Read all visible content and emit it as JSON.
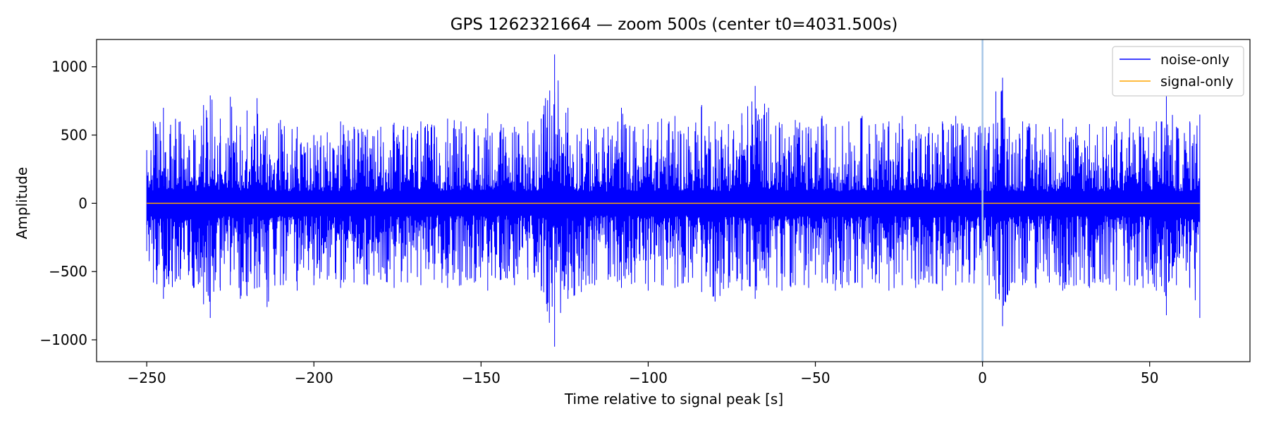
{
  "chart_data": {
    "type": "line",
    "title": "GPS 1262321664 — zoom 500s (center t0=4031.500s)",
    "xlabel": "Time relative to signal peak [s]",
    "ylabel": "Amplitude",
    "xlim": [
      -265,
      80
    ],
    "ylim": [
      -1160,
      1200
    ],
    "x_ticks": [
      -250,
      -200,
      -150,
      -100,
      -50,
      0,
      50
    ],
    "x_tick_labels": [
      "−250",
      "−200",
      "−150",
      "−100",
      "−50",
      "0",
      "50"
    ],
    "y_ticks": [
      -1000,
      -500,
      0,
      500,
      1000
    ],
    "y_tick_labels": [
      "−1000",
      "−500",
      "0",
      "500",
      "1000"
    ],
    "grid": false,
    "legend_position": "top-right",
    "vertical_marker_x": 0,
    "vertical_marker_color": "#a7c7e7",
    "series": [
      {
        "name": "noise-only",
        "color": "#0000ff",
        "x_range": [
          -250,
          65
        ],
        "envelope_max": [
          [
            -250,
            390
          ],
          [
            -248,
            600
          ],
          [
            -245,
            700
          ],
          [
            -240,
            600
          ],
          [
            -236,
            540
          ],
          [
            -233,
            720
          ],
          [
            -231,
            790
          ],
          [
            -228,
            620
          ],
          [
            -225,
            780
          ],
          [
            -222,
            560
          ],
          [
            -220,
            680
          ],
          [
            -217,
            770
          ],
          [
            -214,
            550
          ],
          [
            -210,
            610
          ],
          [
            -205,
            560
          ],
          [
            -200,
            500
          ],
          [
            -196,
            520
          ],
          [
            -192,
            600
          ],
          [
            -188,
            560
          ],
          [
            -184,
            540
          ],
          [
            -180,
            560
          ],
          [
            -176,
            590
          ],
          [
            -172,
            560
          ],
          [
            -168,
            600
          ],
          [
            -164,
            570
          ],
          [
            -160,
            620
          ],
          [
            -156,
            600
          ],
          [
            -152,
            550
          ],
          [
            -148,
            660
          ],
          [
            -144,
            580
          ],
          [
            -140,
            560
          ],
          [
            -136,
            600
          ],
          [
            -132,
            620
          ],
          [
            -128,
            1090
          ],
          [
            -124,
            700
          ],
          [
            -120,
            550
          ],
          [
            -116,
            560
          ],
          [
            -112,
            560
          ],
          [
            -108,
            700
          ],
          [
            -104,
            560
          ],
          [
            -100,
            580
          ],
          [
            -96,
            620
          ],
          [
            -92,
            640
          ],
          [
            -88,
            560
          ],
          [
            -84,
            720
          ],
          [
            -80,
            600
          ],
          [
            -76,
            580
          ],
          [
            -72,
            660
          ],
          [
            -68,
            860
          ],
          [
            -64,
            700
          ],
          [
            -60,
            580
          ],
          [
            -56,
            610
          ],
          [
            -52,
            560
          ],
          [
            -48,
            640
          ],
          [
            -44,
            560
          ],
          [
            -40,
            600
          ],
          [
            -36,
            640
          ],
          [
            -32,
            580
          ],
          [
            -28,
            600
          ],
          [
            -24,
            640
          ],
          [
            -20,
            580
          ],
          [
            -16,
            560
          ],
          [
            -12,
            600
          ],
          [
            -8,
            640
          ],
          [
            -4,
            560
          ],
          [
            0,
            600
          ],
          [
            2,
            560
          ],
          [
            4,
            820
          ],
          [
            6,
            920
          ],
          [
            8,
            560
          ],
          [
            12,
            600
          ],
          [
            16,
            580
          ],
          [
            20,
            560
          ],
          [
            24,
            620
          ],
          [
            28,
            560
          ],
          [
            32,
            580
          ],
          [
            36,
            560
          ],
          [
            40,
            600
          ],
          [
            44,
            620
          ],
          [
            48,
            560
          ],
          [
            52,
            600
          ],
          [
            55,
            800
          ],
          [
            58,
            560
          ],
          [
            62,
            600
          ],
          [
            65,
            650
          ]
        ],
        "envelope_min": [
          [
            -250,
            -350
          ],
          [
            -248,
            -580
          ],
          [
            -245,
            -700
          ],
          [
            -240,
            -560
          ],
          [
            -236,
            -620
          ],
          [
            -233,
            -740
          ],
          [
            -231,
            -840
          ],
          [
            -228,
            -640
          ],
          [
            -225,
            -600
          ],
          [
            -222,
            -700
          ],
          [
            -220,
            -680
          ],
          [
            -217,
            -620
          ],
          [
            -214,
            -760
          ],
          [
            -210,
            -600
          ],
          [
            -205,
            -640
          ],
          [
            -200,
            -600
          ],
          [
            -196,
            -560
          ],
          [
            -192,
            -620
          ],
          [
            -188,
            -580
          ],
          [
            -184,
            -600
          ],
          [
            -180,
            -560
          ],
          [
            -176,
            -620
          ],
          [
            -172,
            -580
          ],
          [
            -168,
            -600
          ],
          [
            -164,
            -560
          ],
          [
            -160,
            -620
          ],
          [
            -156,
            -600
          ],
          [
            -152,
            -580
          ],
          [
            -148,
            -640
          ],
          [
            -144,
            -560
          ],
          [
            -140,
            -600
          ],
          [
            -136,
            -560
          ],
          [
            -132,
            -640
          ],
          [
            -128,
            -1050
          ],
          [
            -124,
            -700
          ],
          [
            -120,
            -650
          ],
          [
            -116,
            -600
          ],
          [
            -112,
            -560
          ],
          [
            -108,
            -620
          ],
          [
            -104,
            -580
          ],
          [
            -100,
            -640
          ],
          [
            -96,
            -600
          ],
          [
            -92,
            -620
          ],
          [
            -88,
            -580
          ],
          [
            -84,
            -650
          ],
          [
            -80,
            -720
          ],
          [
            -76,
            -620
          ],
          [
            -72,
            -640
          ],
          [
            -68,
            -700
          ],
          [
            -64,
            -600
          ],
          [
            -60,
            -640
          ],
          [
            -56,
            -600
          ],
          [
            -52,
            -620
          ],
          [
            -48,
            -580
          ],
          [
            -44,
            -640
          ],
          [
            -40,
            -600
          ],
          [
            -36,
            -620
          ],
          [
            -32,
            -580
          ],
          [
            -28,
            -640
          ],
          [
            -24,
            -600
          ],
          [
            -20,
            -620
          ],
          [
            -16,
            -580
          ],
          [
            -12,
            -640
          ],
          [
            -8,
            -600
          ],
          [
            -4,
            -580
          ],
          [
            0,
            -620
          ],
          [
            2,
            -600
          ],
          [
            4,
            -700
          ],
          [
            6,
            -900
          ],
          [
            8,
            -640
          ],
          [
            12,
            -600
          ],
          [
            16,
            -620
          ],
          [
            20,
            -580
          ],
          [
            24,
            -640
          ],
          [
            28,
            -600
          ],
          [
            32,
            -620
          ],
          [
            36,
            -580
          ],
          [
            40,
            -640
          ],
          [
            44,
            -600
          ],
          [
            48,
            -620
          ],
          [
            52,
            -640
          ],
          [
            55,
            -820
          ],
          [
            58,
            -600
          ],
          [
            62,
            -620
          ],
          [
            65,
            -840
          ]
        ]
      },
      {
        "name": "signal-only",
        "color": "#ffa500",
        "x": [
          -250,
          65
        ],
        "values": [
          0,
          0
        ]
      }
    ]
  }
}
